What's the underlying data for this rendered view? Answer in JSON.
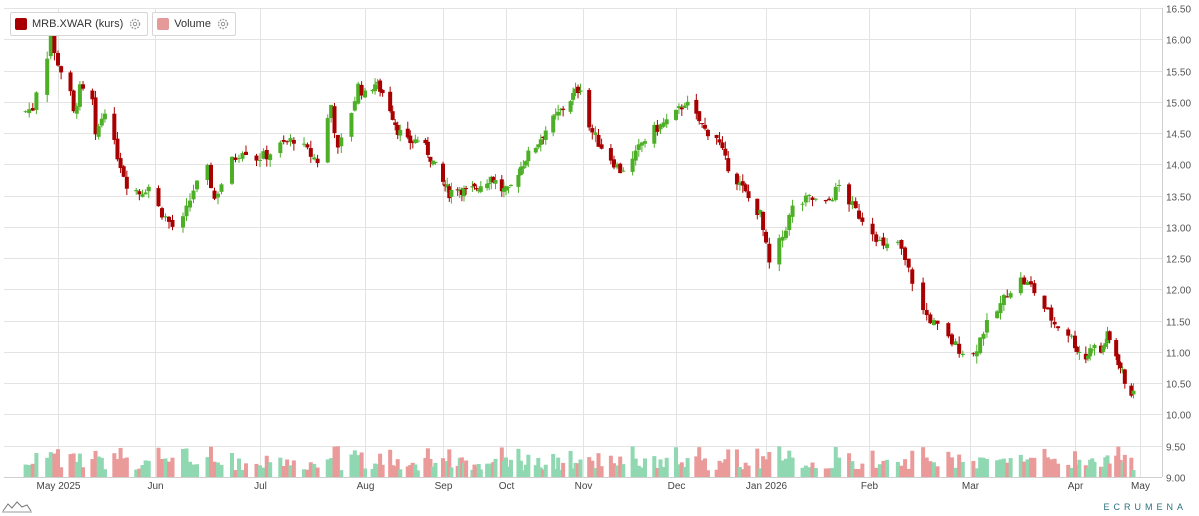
{
  "legend": {
    "price_label": "MRB.XWAR (kurs)",
    "volume_label": "Volume"
  },
  "brand": "ECRUMENA",
  "icons": [
    "gear-icon",
    "gear-icon",
    "mini-chart-icon"
  ],
  "colors": {
    "up": "#4caf26",
    "down": "#a80000",
    "volume_up": "#8fd8b1",
    "volume_down": "#eb9a9a",
    "legend_price": "#a80000",
    "legend_volume": "#e59a9a",
    "grid": "#e3e3e3"
  },
  "chart_data": {
    "type": "candlestick",
    "y_range": [
      9.0,
      16.5
    ],
    "y_ticks": [
      "9.00",
      "9.50",
      "10.00",
      "10.50",
      "11.00",
      "11.50",
      "12.00",
      "12.50",
      "13.00",
      "13.50",
      "14.00",
      "14.50",
      "15.00",
      "15.50",
      "16.00",
      "16.50"
    ],
    "x_ticks": [
      "May 2025",
      "Jun",
      "Jul",
      "Aug",
      "Sep",
      "Oct",
      "Nov",
      "Dec",
      "Jan 2026",
      "Feb",
      "Mar",
      "Apr",
      "May"
    ],
    "grid": true,
    "legend_position": "top-left",
    "series": [
      {
        "name": "MRB.XWAR (kurs)",
        "type": "candlestick"
      },
      {
        "name": "Volume",
        "type": "bar"
      }
    ],
    "close_path": [
      [
        "2025-04-22",
        14.85
      ],
      [
        "2025-04-24",
        14.9
      ],
      [
        "2025-04-25",
        15.2
      ],
      [
        "2025-04-28",
        15.75
      ],
      [
        "2025-04-29",
        16.1
      ],
      [
        "2025-04-30",
        15.75
      ],
      [
        "2025-05-02",
        15.5
      ],
      [
        "2025-05-05",
        15.1
      ],
      [
        "2025-05-06",
        14.8
      ],
      [
        "2025-05-08",
        15.2
      ],
      [
        "2025-05-12",
        15.0
      ],
      [
        "2025-05-13",
        14.4
      ],
      [
        "2025-05-14",
        14.6
      ],
      [
        "2025-05-16",
        14.9
      ],
      [
        "2025-05-19",
        14.3
      ],
      [
        "2025-05-21",
        14.0
      ],
      [
        "2025-05-23",
        13.7
      ],
      [
        "2025-05-27",
        13.55
      ],
      [
        "2025-05-30",
        13.65
      ],
      [
        "2025-06-02",
        13.3
      ],
      [
        "2025-06-04",
        13.15
      ],
      [
        "2025-06-06",
        13.0
      ],
      [
        "2025-06-09",
        13.1
      ],
      [
        "2025-06-12",
        13.6
      ],
      [
        "2025-06-16",
        13.9
      ],
      [
        "2025-06-18",
        13.45
      ],
      [
        "2025-06-20",
        13.7
      ],
      [
        "2025-06-23",
        14.05
      ],
      [
        "2025-06-26",
        14.25
      ],
      [
        "2025-06-30",
        14.1
      ],
      [
        "2025-07-03",
        14.15
      ],
      [
        "2025-07-07",
        14.3
      ],
      [
        "2025-07-11",
        14.4
      ],
      [
        "2025-07-15",
        14.2
      ],
      [
        "2025-07-18",
        14.05
      ],
      [
        "2025-07-22",
        14.95
      ],
      [
        "2025-07-24",
        14.2
      ],
      [
        "2025-07-28",
        14.85
      ],
      [
        "2025-07-30",
        15.25
      ],
      [
        "2025-08-01",
        15.1
      ],
      [
        "2025-08-05",
        15.3
      ],
      [
        "2025-08-08",
        15.15
      ],
      [
        "2025-08-11",
        14.9
      ],
      [
        "2025-08-14",
        14.55
      ],
      [
        "2025-08-18",
        14.35
      ],
      [
        "2025-08-22",
        14.4
      ],
      [
        "2025-08-26",
        14.2
      ],
      [
        "2025-08-29",
        13.95
      ],
      [
        "2025-09-01",
        13.7
      ],
      [
        "2025-09-04",
        13.55
      ],
      [
        "2025-09-08",
        13.65
      ],
      [
        "2025-09-12",
        13.55
      ],
      [
        "2025-09-16",
        13.6
      ],
      [
        "2025-09-20",
        13.7
      ],
      [
        "2025-09-24",
        13.8
      ],
      [
        "2025-09-29",
        13.6
      ],
      [
        "2025-10-02",
        13.55
      ],
      [
        "2025-10-06",
        13.9
      ],
      [
        "2025-10-09",
        14.1
      ],
      [
        "2025-10-13",
        14.3
      ],
      [
        "2025-10-17",
        14.55
      ],
      [
        "2025-10-21",
        14.75
      ],
      [
        "2025-10-24",
        14.9
      ],
      [
        "2025-10-28",
        15.1
      ],
      [
        "2025-10-31",
        15.25
      ],
      [
        "2025-11-03",
        14.6
      ],
      [
        "2025-11-06",
        14.35
      ],
      [
        "2025-11-10",
        14.1
      ],
      [
        "2025-11-13",
        13.9
      ],
      [
        "2025-11-17",
        14.05
      ],
      [
        "2025-11-20",
        14.35
      ],
      [
        "2025-11-24",
        14.55
      ],
      [
        "2025-11-27",
        14.65
      ],
      [
        "2025-12-01",
        14.8
      ],
      [
        "2025-12-04",
        15.0
      ],
      [
        "2025-12-08",
        14.75
      ],
      [
        "2025-12-11",
        14.55
      ],
      [
        "2025-12-15",
        14.45
      ],
      [
        "2025-12-18",
        14.05
      ],
      [
        "2025-12-22",
        13.75
      ],
      [
        "2025-12-26",
        13.45
      ],
      [
        "2025-12-30",
        13.2
      ],
      [
        "2026-01-02",
        12.4
      ],
      [
        "2026-01-06",
        12.85
      ],
      [
        "2026-01-09",
        13.3
      ],
      [
        "2026-01-14",
        13.45
      ],
      [
        "2026-01-19",
        13.35
      ],
      [
        "2026-01-23",
        13.65
      ],
      [
        "2026-01-28",
        13.25
      ],
      [
        "2026-02-02",
        12.95
      ],
      [
        "2026-02-05",
        12.65
      ],
      [
        "2026-02-09",
        12.75
      ],
      [
        "2026-02-12",
        12.3
      ],
      [
        "2026-02-16",
        11.65
      ],
      [
        "2026-02-19",
        11.45
      ],
      [
        "2026-02-23",
        11.2
      ],
      [
        "2026-02-26",
        11.05
      ],
      [
        "2026-03-02",
        10.95
      ],
      [
        "2026-03-05",
        11.35
      ],
      [
        "2026-03-09",
        11.65
      ],
      [
        "2026-03-12",
        11.95
      ],
      [
        "2026-03-16",
        12.15
      ],
      [
        "2026-03-19",
        12.05
      ],
      [
        "2026-03-23",
        11.7
      ],
      [
        "2026-03-26",
        11.45
      ],
      [
        "2026-03-30",
        11.3
      ],
      [
        "2026-04-02",
        11.05
      ],
      [
        "2026-04-06",
        10.9
      ],
      [
        "2026-04-09",
        11.1
      ],
      [
        "2026-04-13",
        11.0
      ],
      [
        "2026-04-16",
        11.25
      ],
      [
        "2026-04-20",
        10.95
      ],
      [
        "2026-04-24",
        10.55
      ],
      [
        "2026-04-28",
        10.3
      ]
    ]
  }
}
